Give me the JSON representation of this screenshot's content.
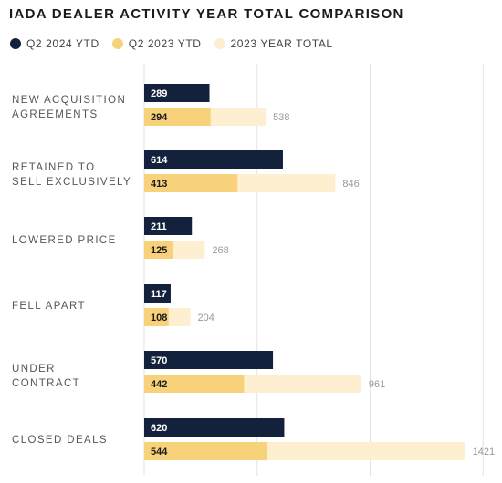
{
  "chart_data": {
    "type": "bar",
    "orientation": "horizontal",
    "title": "IADA DEALER ACTIVITY YEAR TOTAL COMPARISON",
    "categories": [
      [
        "NEW ACQUISITION",
        "AGREEMENTS"
      ],
      [
        "RETAINED TO",
        "SELL EXCLUSIVELY"
      ],
      [
        "LOWERED PRICE"
      ],
      [
        "FELL APART"
      ],
      [
        "UNDER",
        "CONTRACT"
      ],
      [
        "CLOSED DEALS"
      ]
    ],
    "series": [
      {
        "name": "Q2 2024 YTD",
        "values": [
          289,
          614,
          211,
          117,
          570,
          620
        ],
        "color": "#14213d"
      },
      {
        "name": "Q2 2023 YTD",
        "values": [
          294,
          413,
          125,
          108,
          442,
          544
        ],
        "color": "#f7d27a"
      },
      {
        "name": "2023 YEAR TOTAL",
        "values": [
          538,
          846,
          268,
          204,
          961,
          1421
        ],
        "color": "#fdefcf"
      }
    ],
    "xlim": [
      0,
      1500
    ],
    "grid": true,
    "legend": "top-left"
  }
}
